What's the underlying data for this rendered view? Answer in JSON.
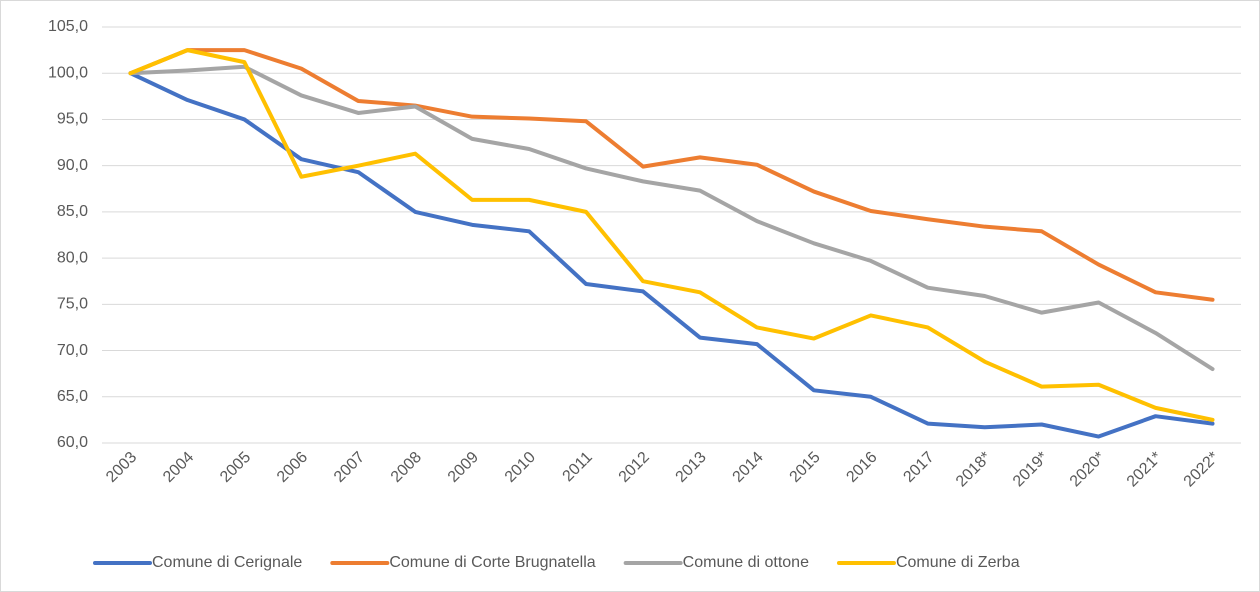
{
  "chart_data": {
    "type": "line",
    "categories": [
      "2003",
      "2004",
      "2005",
      "2006",
      "2007",
      "2008",
      "2009",
      "2010",
      "2011",
      "2012",
      "2013",
      "2014",
      "2015",
      "2016",
      "2017",
      "2018*",
      "2019*",
      "2020*",
      "2021*",
      "2022*"
    ],
    "series": [
      {
        "name": "Comune di Cerignale",
        "color": "#4472c4",
        "values": [
          100,
          97.1,
          95.0,
          90.7,
          89.3,
          85.0,
          83.6,
          82.9,
          77.2,
          76.4,
          71.4,
          70.7,
          65.7,
          65.0,
          62.1,
          61.7,
          62.0,
          60.7,
          62.9,
          62.1
        ]
      },
      {
        "name": "Comune di Corte Brugnatella",
        "color": "#ed7d31",
        "values": [
          100,
          102.5,
          102.5,
          100.5,
          97.0,
          96.5,
          95.3,
          95.1,
          94.8,
          89.9,
          90.9,
          90.1,
          87.2,
          85.1,
          84.2,
          83.4,
          82.9,
          79.3,
          76.3,
          75.5
        ]
      },
      {
        "name": "Comune di ottone",
        "color": "#a5a5a5",
        "values": [
          100,
          100.3,
          100.7,
          97.6,
          95.7,
          96.4,
          92.9,
          91.8,
          89.7,
          88.3,
          87.3,
          84.0,
          81.6,
          79.7,
          76.8,
          75.9,
          74.1,
          75.2,
          71.9,
          68.0
        ]
      },
      {
        "name": "Comune di Zerba",
        "color": "#ffc000",
        "values": [
          100,
          102.5,
          101.2,
          88.8,
          90.0,
          91.3,
          86.3,
          86.3,
          85.0,
          77.5,
          76.3,
          72.5,
          71.3,
          73.8,
          72.5,
          68.8,
          66.1,
          66.3,
          63.8,
          62.5
        ]
      }
    ],
    "ylim": [
      60,
      105
    ],
    "yticks": [
      {
        "value": 60,
        "label": "60,0"
      },
      {
        "value": 65,
        "label": "65,0"
      },
      {
        "value": 70,
        "label": "70,0"
      },
      {
        "value": 75,
        "label": "75,0"
      },
      {
        "value": 80,
        "label": "80,0"
      },
      {
        "value": 85,
        "label": "85,0"
      },
      {
        "value": 90,
        "label": "90,0"
      },
      {
        "value": 95,
        "label": "95,0"
      },
      {
        "value": 100,
        "label": "100,0"
      },
      {
        "value": 105,
        "label": "105,0"
      }
    ],
    "grid": true,
    "legend": "bottom"
  }
}
